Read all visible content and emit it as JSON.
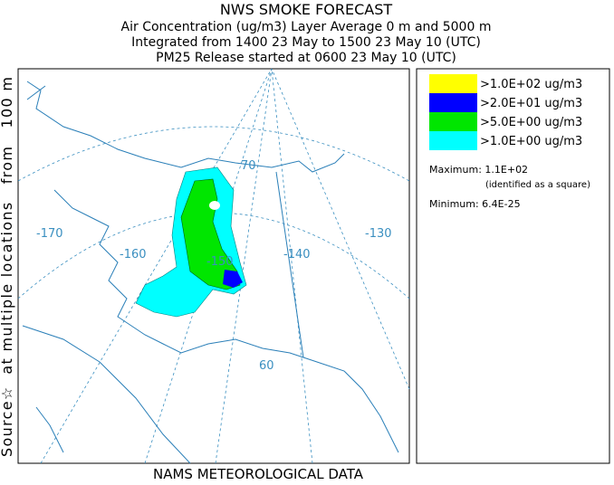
{
  "header": {
    "lines": [
      "NWS SMOKE FORECAST",
      "Air Concentration (ug/m3) Layer Average    0 m and  5000 m",
      "Integrated from 1400 23 May to 1500 23 May 10 (UTC)",
      "PM25 Release started at 0600 23 May 10 (UTC)"
    ]
  },
  "side_label": "Source☆  at multiple locations   from   100 m",
  "footer": "NAMS METEOROLOGICAL DATA",
  "map": {
    "graticule_labels": [
      "-170",
      "-160",
      "-150",
      "-140",
      "-130",
      "70",
      "60"
    ]
  },
  "legend": {
    "items": [
      {
        "color": "#ffff00",
        "label": ">1.0E+02 ug/m3"
      },
      {
        "color": "#0000ff",
        "label": ">2.0E+01 ug/m3"
      },
      {
        "color": "#00e600",
        "label": ">5.0E+00 ug/m3"
      },
      {
        "color": "#00ffff",
        "label": ">1.0E+00 ug/m3"
      }
    ],
    "maximum": "Maximum: 1.1E+02",
    "identified": "(identified as a square)",
    "minimum": "Minimum: 6.4E-25"
  }
}
